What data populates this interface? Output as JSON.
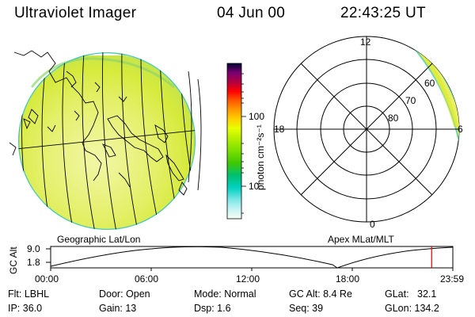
{
  "header": {
    "title": "Ultraviolet Imager",
    "date": "04 Jun 00",
    "time": "22:43:25 UT"
  },
  "geographic_panel": {
    "label": "Geographic Lat/Lon"
  },
  "apex_panel": {
    "label": "Apex MLat/MLT",
    "mlt_labels": [
      "12",
      "18",
      "6",
      "0"
    ],
    "mlat_labels": [
      "60",
      "70",
      "80"
    ]
  },
  "colorbar": {
    "unit_label": "photon cm⁻²s⁻¹",
    "tick_labels": [
      "100",
      "10"
    ],
    "colors": [
      "#000033",
      "#3a0050",
      "#7a0070",
      "#b00040",
      "#ff0000",
      "#ff5a00",
      "#ff9a00",
      "#ffd200",
      "#e6ff00",
      "#b8f000",
      "#7ce000",
      "#40c800",
      "#00c070",
      "#00d0c0",
      "#80e8e8",
      "#c8f4f4",
      "#f4fff4"
    ]
  },
  "altitude_plot": {
    "ylabel": "GC Alt",
    "ytick_labels": [
      "9.0",
      "1.8"
    ],
    "xtick_labels": [
      "00:00",
      "06:00",
      "12:00",
      "18:00",
      "23:59"
    ],
    "current_time_hours": 22.72,
    "marker_color": "#dd0000"
  },
  "info": {
    "flt": "Flt: LBHL",
    "ip": "IP: 36.0",
    "door": "Door: Open",
    "gain": "Gain: 13",
    "mode": "Mode: Normal",
    "dsp": "Dsp:   1.6",
    "gcalt": "GC Alt: 8.4 Re",
    "seq": "Seq: 39",
    "glat": "GLat:   32.1",
    "glon": "GLon: 134.2"
  }
}
